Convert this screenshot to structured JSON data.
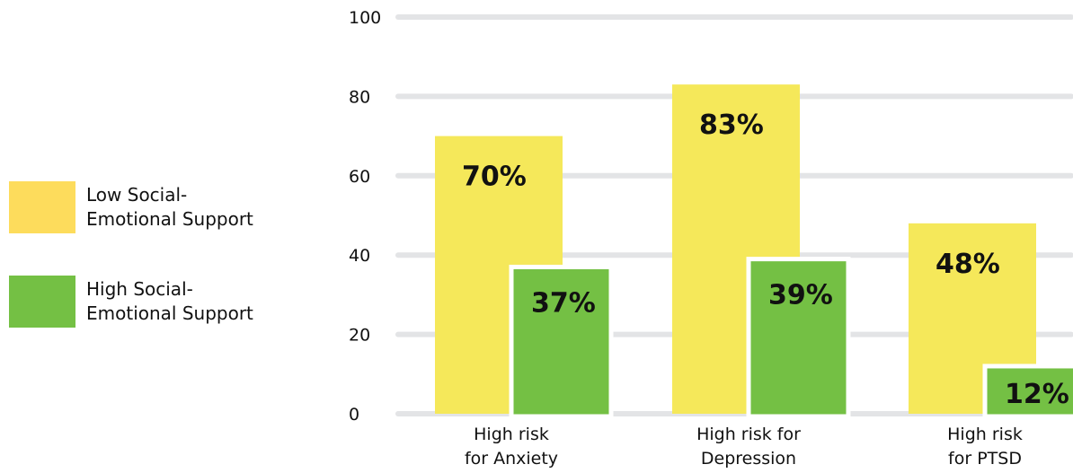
{
  "chart_data": {
    "type": "bar",
    "categories": [
      [
        "High risk",
        "for Anxiety"
      ],
      [
        "High risk for",
        "Depression"
      ],
      [
        "High risk",
        "for PTSD"
      ]
    ],
    "series": [
      {
        "name": "Low Social-Emotional Support",
        "legend_lines": [
          "Low Social-",
          "Emotional Support"
        ],
        "color": "#f5e85a",
        "swatch_color": "#fddc5c",
        "values": [
          70,
          83,
          48
        ],
        "labels": [
          "70%",
          "83%",
          "48%"
        ]
      },
      {
        "name": "High Social-Emotional Support",
        "legend_lines": [
          "High Social-",
          "Emotional Support"
        ],
        "color": "#74c044",
        "swatch_color": "#74c044",
        "values": [
          37,
          39,
          12
        ],
        "labels": [
          "37%",
          "39%",
          "12%"
        ]
      }
    ],
    "yticks": [
      0,
      20,
      40,
      60,
      80,
      100
    ],
    "ylim": [
      0,
      100
    ],
    "grid": true,
    "legend_position": "left",
    "gridline_color": "#e3e4e6"
  }
}
